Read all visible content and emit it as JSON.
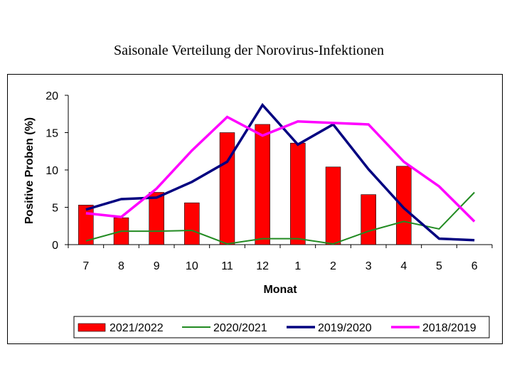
{
  "chart_data": {
    "type": "bar",
    "title": "Saisonale Verteilung der Norovirus-Infektionen",
    "xlabel": "Monat",
    "ylabel": "Positive Proben (%)",
    "ylim": [
      0,
      20
    ],
    "yticks": [
      0,
      5,
      10,
      15,
      20
    ],
    "grid": false,
    "legend_position": "bottom",
    "categories": [
      "7",
      "8",
      "9",
      "10",
      "11",
      "12",
      "1",
      "2",
      "3",
      "4",
      "5",
      "6"
    ],
    "series": [
      {
        "name": "2021/2022",
        "type": "bar",
        "color": "#ff0000",
        "values": [
          5.3,
          3.6,
          7.0,
          5.6,
          15.0,
          16.1,
          13.6,
          10.4,
          6.7,
          10.5,
          null,
          null
        ]
      },
      {
        "name": "2020/2021",
        "type": "line",
        "color": "#228b22",
        "values": [
          0.5,
          1.8,
          1.8,
          1.9,
          0.1,
          0.8,
          0.8,
          0.1,
          1.8,
          3.1,
          2.1,
          7.0
        ]
      },
      {
        "name": "2019/2020",
        "type": "line",
        "color": "#000080",
        "values": [
          4.7,
          6.1,
          6.3,
          8.4,
          11.1,
          18.7,
          13.4,
          16.1,
          10.1,
          4.9,
          0.8,
          0.6
        ]
      },
      {
        "name": "2018/2019",
        "type": "line",
        "color": "#ff00ff",
        "values": [
          4.2,
          3.7,
          7.5,
          12.6,
          17.1,
          14.6,
          16.5,
          16.3,
          16.1,
          11.1,
          7.8,
          3.1
        ]
      }
    ]
  }
}
